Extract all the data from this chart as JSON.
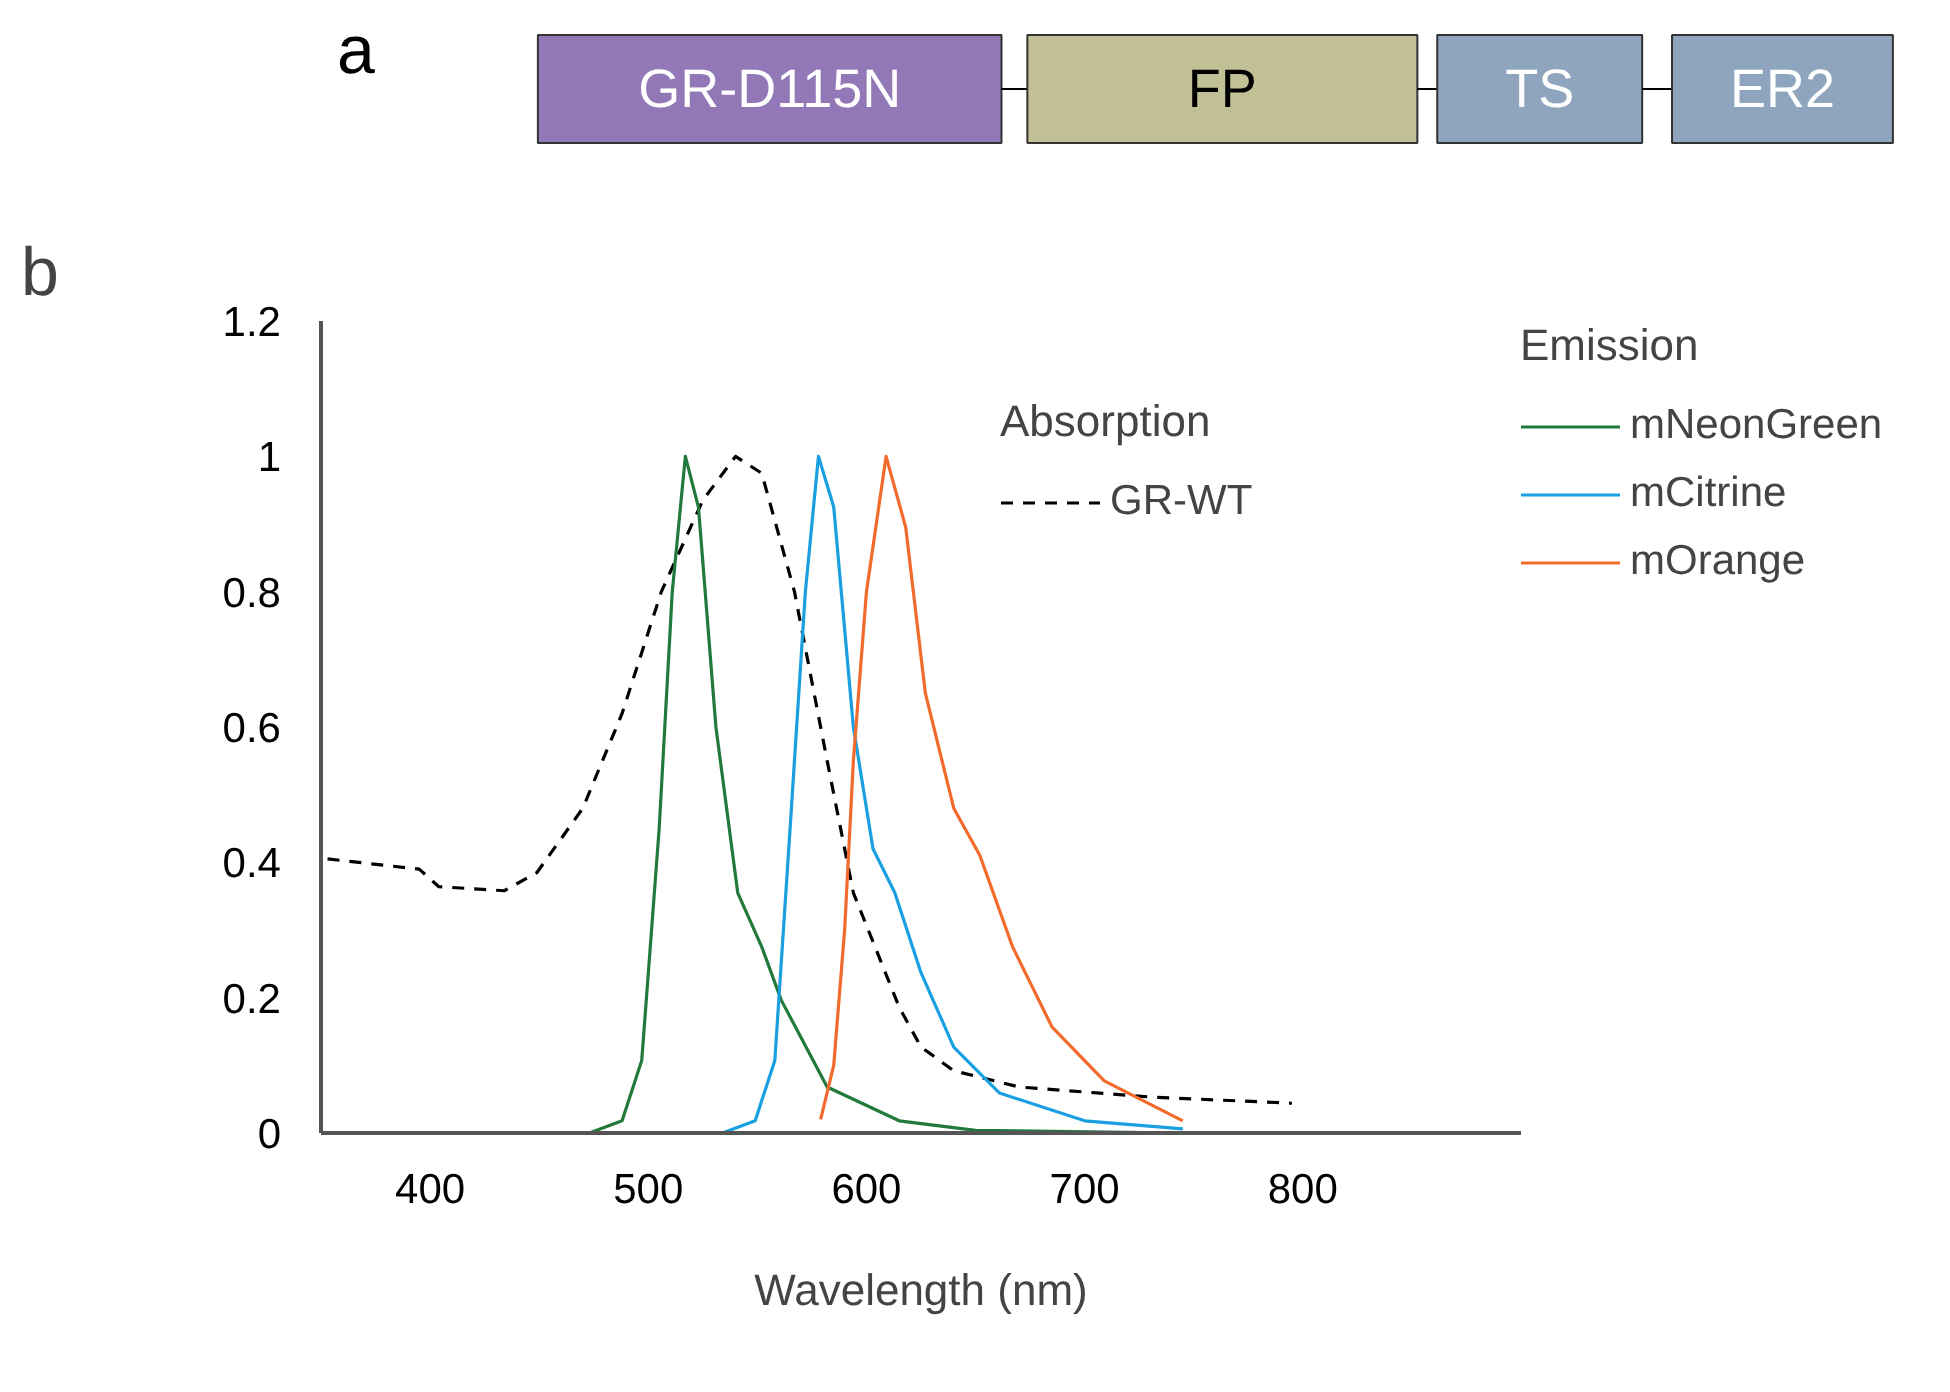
{
  "chart_data": [
    {
      "type": "other",
      "title": "a",
      "categories": [
        "GR-D115N",
        "FP",
        "TS",
        "ER2"
      ],
      "colors": [
        "#9278b6",
        "#c2c196",
        "#8fa5bd",
        "#8fa5bd"
      ]
    },
    {
      "type": "line",
      "title": "b",
      "xlabel": "Wavelength (nm)",
      "xlim": [
        350,
        900
      ],
      "ylim": [
        0,
        1.2
      ],
      "xticks": [
        400,
        500,
        600,
        700,
        800
      ],
      "yticks": [
        0,
        0.2,
        0.4,
        0.6,
        0.8,
        1,
        1.2
      ],
      "grid": false,
      "legend": "right",
      "annotations": [
        "Absorption",
        "Emission"
      ],
      "series": [
        {
          "name": "GR-WT",
          "color": "#000000",
          "line_style": "dashed",
          "x": [
            353,
            395,
            404,
            434,
            449,
            470,
            488,
            506,
            525,
            540,
            552,
            567,
            582,
            594,
            615,
            625,
            640,
            670,
            731,
            795
          ],
          "values": [
            0.405,
            0.39,
            0.364,
            0.358,
            0.385,
            0.48,
            0.62,
            0.8,
            0.935,
            1.0,
            0.975,
            0.8,
            0.55,
            0.355,
            0.186,
            0.127,
            0.092,
            0.068,
            0.053,
            0.044
          ]
        },
        {
          "name": "mNeonGreen",
          "color": "#217a3c",
          "line_style": "solid",
          "x": [
            473,
            488,
            497,
            505,
            511,
            517,
            523,
            531,
            541,
            552,
            561,
            582,
            615,
            650,
            745
          ],
          "values": [
            0,
            0.018,
            0.107,
            0.45,
            0.8,
            1.0,
            0.925,
            0.6,
            0.355,
            0.275,
            0.196,
            0.068,
            0.018,
            0.004,
            0
          ]
        },
        {
          "name": "mCitrine",
          "color": "#1a9fe0",
          "line_style": "solid",
          "x": [
            534,
            549,
            558,
            565,
            572,
            578,
            585,
            594,
            603,
            613,
            625,
            640,
            661,
            700,
            745
          ],
          "values": [
            0,
            0.018,
            0.107,
            0.45,
            0.8,
            1.0,
            0.925,
            0.6,
            0.42,
            0.355,
            0.237,
            0.127,
            0.059,
            0.018,
            0.006
          ]
        },
        {
          "name": "mOrange",
          "color": "#f26b2c",
          "line_style": "solid",
          "x": [
            579,
            585,
            590,
            594,
            600,
            609,
            618,
            627,
            640,
            652,
            667,
            685,
            709,
            745
          ],
          "values": [
            0.02,
            0.1,
            0.3,
            0.55,
            0.8,
            1.0,
            0.895,
            0.65,
            0.48,
            0.41,
            0.275,
            0.157,
            0.077,
            0.018
          ]
        }
      ]
    }
  ]
}
